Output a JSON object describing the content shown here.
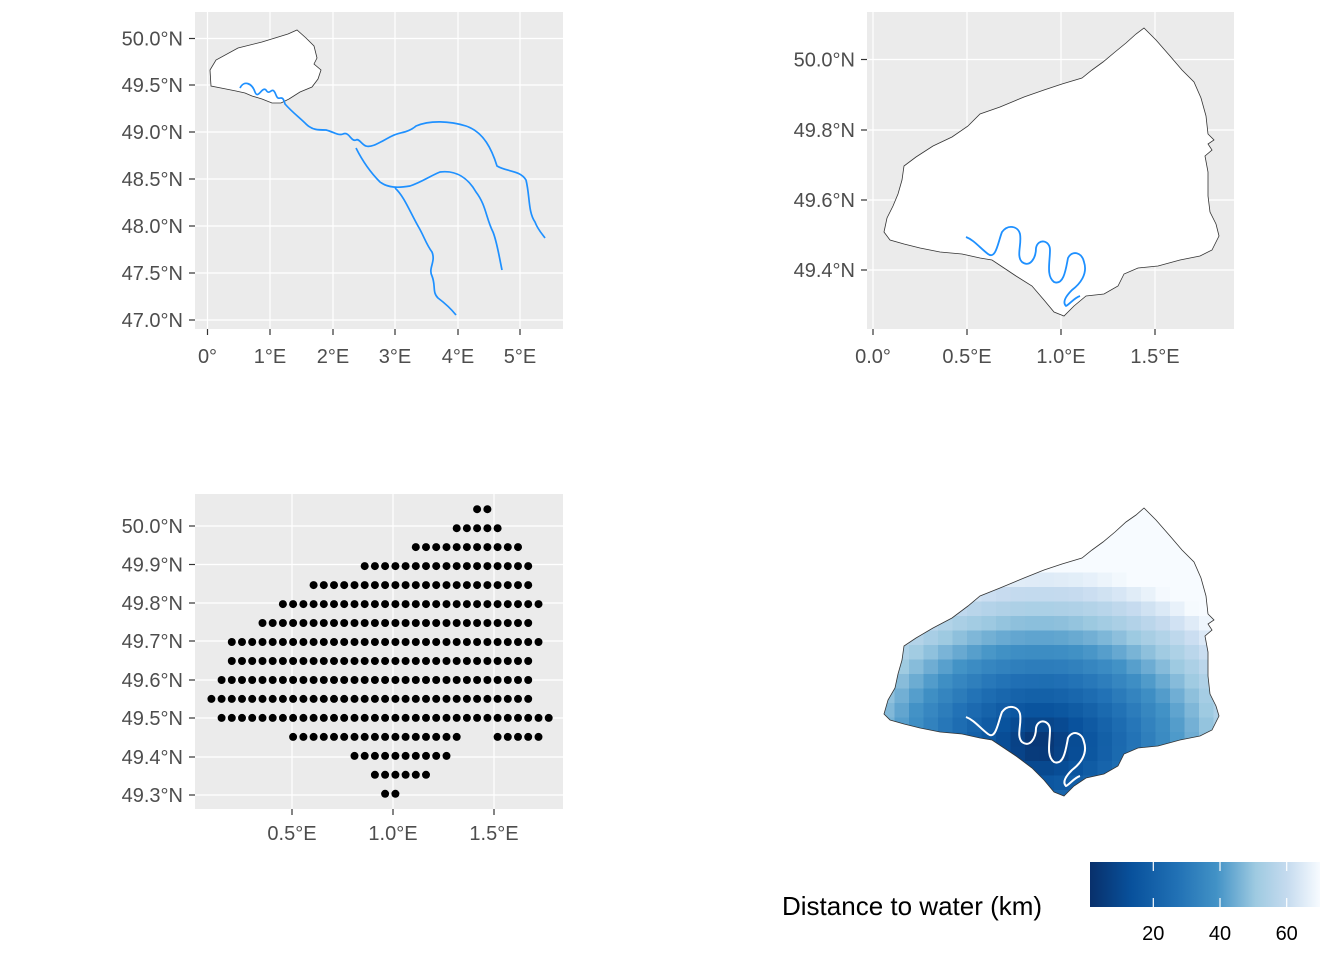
{
  "colors": {
    "panel_bg": "#EBEBEB",
    "grid": "#FFFFFF",
    "tick_text": "#4D4D4D",
    "river": "#1E90FF",
    "outline": "#333333",
    "points": "#000000",
    "gradient_low": "#08306B",
    "gradient_mid": "#4292C6",
    "gradient_high": "#F7FBFF"
  },
  "panels": {
    "seine_basin": {
      "x_ticks": [
        "0°",
        "1°E",
        "2°E",
        "3°E",
        "4°E",
        "5°E"
      ],
      "y_ticks": [
        "50.0°N",
        "49.5°N",
        "49.0°N",
        "48.5°N",
        "48.0°N",
        "47.5°N",
        "47.0°N"
      ],
      "xlim": [
        -0.2,
        5.6
      ],
      "ylim": [
        46.9,
        50.2
      ]
    },
    "study_area": {
      "x_ticks": [
        "0.0°",
        "0.5°E",
        "1.0°E",
        "1.5°E"
      ],
      "y_ticks": [
        "50.0°N",
        "49.8°N",
        "49.6°N",
        "49.4°N"
      ],
      "xlim": [
        -0.02,
        1.95
      ],
      "ylim": [
        49.26,
        50.13
      ]
    },
    "grid_points": {
      "x_ticks": [
        "0.5°E",
        "1.0°E",
        "1.5°E"
      ],
      "y_ticks": [
        "50.0°N",
        "49.9°N",
        "49.8°N",
        "49.7°N",
        "49.6°N",
        "49.5°N",
        "49.4°N",
        "49.3°N"
      ],
      "xlim": [
        0.02,
        1.82
      ],
      "ylim": [
        49.26,
        50.09
      ],
      "point_rows": [
        {
          "lat": 50.05,
          "lon_from": 1.4,
          "lon_to": 1.45
        },
        {
          "lat": 50.0,
          "lon_from": 1.3,
          "lon_to": 1.5
        },
        {
          "lat": 49.95,
          "lon_from": 1.1,
          "lon_to": 1.6
        },
        {
          "lat": 49.9,
          "lon_from": 0.85,
          "lon_to": 1.65
        },
        {
          "lat": 49.85,
          "lon_from": 0.6,
          "lon_to": 1.65
        },
        {
          "lat": 49.8,
          "lon_from": 0.45,
          "lon_to": 1.7
        },
        {
          "lat": 49.75,
          "lon_from": 0.35,
          "lon_to": 1.65
        },
        {
          "lat": 49.7,
          "lon_from": 0.2,
          "lon_to": 1.7
        },
        {
          "lat": 49.65,
          "lon_from": 0.2,
          "lon_to": 1.65
        },
        {
          "lat": 49.6,
          "lon_from": 0.15,
          "lon_to": 1.65
        },
        {
          "lat": 49.55,
          "lon_from": 0.1,
          "lon_to": 1.65
        },
        {
          "lat": 49.5,
          "lon_from": 0.15,
          "lon_to": 1.75
        },
        {
          "lat": 49.45,
          "lon_from": 0.5,
          "lon_to": 1.3
        },
        {
          "lat": 49.45,
          "lon_from": 1.5,
          "lon_to": 1.7
        },
        {
          "lat": 49.4,
          "lon_from": 0.8,
          "lon_to": 1.25
        },
        {
          "lat": 49.35,
          "lon_from": 0.9,
          "lon_to": 1.15
        },
        {
          "lat": 49.3,
          "lon_from": 0.95,
          "lon_to": 1.0
        }
      ]
    },
    "distance_map": {
      "legend_title": "Distance to water (km)",
      "legend_ticks": [
        "20",
        "40",
        "60"
      ],
      "legend_values": [
        20,
        40,
        60
      ],
      "value_range": [
        1,
        70
      ]
    }
  }
}
